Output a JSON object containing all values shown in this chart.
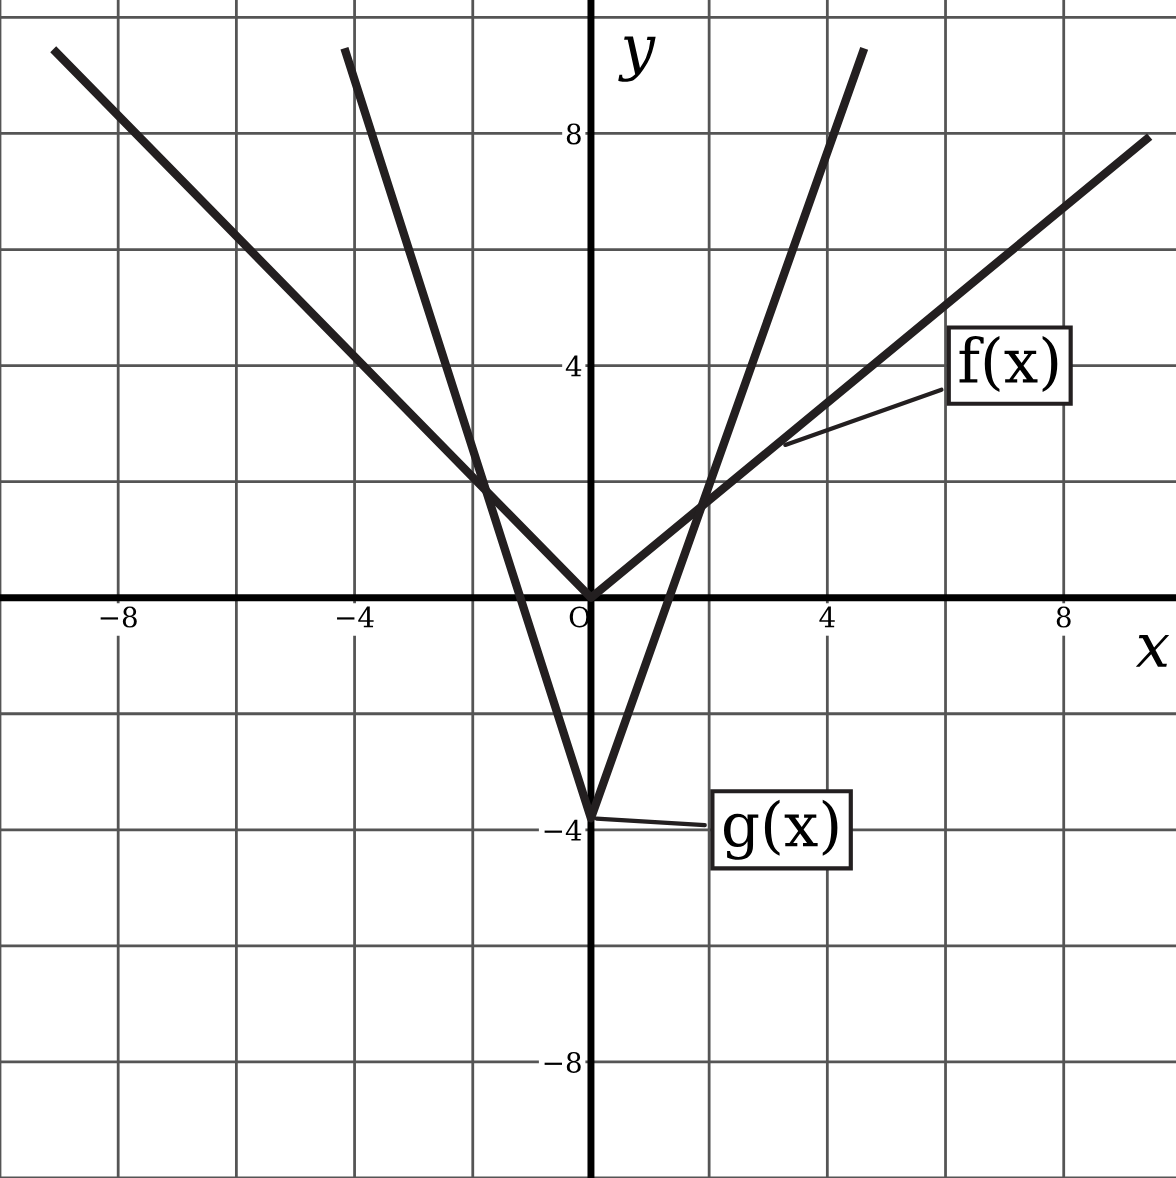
{
  "chart_data": {
    "type": "line",
    "xlabel": "x",
    "ylabel": "y",
    "series": [
      {
        "color": "#231f20",
        "x": [
          -9.05,
          0,
          9.4
        ],
        "values": [
          9.4,
          0,
          7.9
        ]
      },
      {
        "color": "#231f20",
        "x": [
          -4.15,
          0,
          4.6
        ],
        "values": [
          9.4,
          -3.8,
          9.4
        ]
      }
    ],
    "xlim": [
      -10,
      9.9
    ],
    "ylim": [
      -10,
      10.3
    ],
    "xticks": [
      {
        "value": -10,
        "label": null
      },
      -8,
      {
        "value": -6,
        "label": null
      },
      -4,
      {
        "value": -2,
        "label": null
      },
      {
        "value": 0,
        "label": "O"
      },
      {
        "value": 2,
        "label": null
      },
      4,
      {
        "value": 6,
        "label": null
      },
      8
    ],
    "yticks": [
      {
        "value": -10,
        "label": null
      },
      -8,
      {
        "value": -6,
        "label": null
      },
      -4,
      {
        "value": -2,
        "label": null
      },
      {
        "value": 2,
        "label": null
      },
      4,
      {
        "value": 6,
        "label": null
      },
      8,
      {
        "value": 10,
        "label": null
      }
    ],
    "annotations": [
      {
        "text": "f(x)",
        "x": 3.2,
        "y": 2.6
      },
      {
        "text": "g(x)",
        "x": 0,
        "y": -3.8
      }
    ],
    "grid": true,
    "marker": "none",
    "line_style": "solid",
    "legend": false
  }
}
